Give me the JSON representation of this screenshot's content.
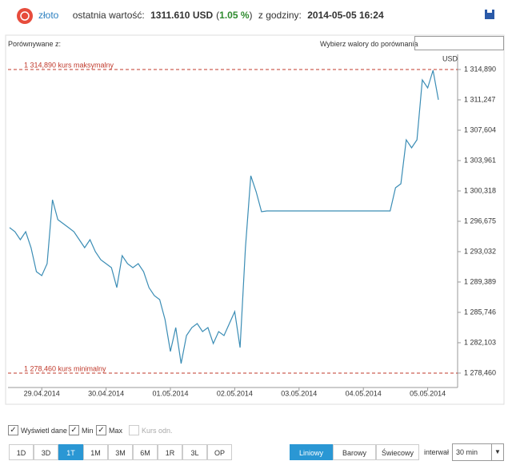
{
  "header": {
    "instrument": "złoto",
    "parts": [
      "ostatnia wartość:",
      "1311.610 USD",
      "(",
      "1.05 %",
      ")",
      "z godziny:",
      "2014-05-05 16:24"
    ]
  },
  "compare": {
    "label": "Porównywane z:",
    "picker": "Wybierz walory do porównania"
  },
  "options": [
    "Wyświetl dane",
    "Min",
    "Max",
    "Kurs odn."
  ],
  "ranges": [
    "1D",
    "3D",
    "1T",
    "1M",
    "3M",
    "6M",
    "1R",
    "3L",
    "OP"
  ],
  "styles": [
    "Liniowy",
    "Barowy",
    "Świecowy"
  ],
  "interval": {
    "label": "interwał",
    "value": "30 min"
  },
  "chart_data": {
    "type": "line",
    "y_unit": "USD",
    "color": "#3b8db5",
    "categories": [
      null,
      null,
      null,
      null,
      null,
      null,
      "29.04.2014",
      null,
      null,
      null,
      null,
      null,
      null,
      null,
      null,
      null,
      null,
      null,
      "30.04.2014",
      null,
      null,
      null,
      null,
      null,
      null,
      null,
      null,
      null,
      null,
      null,
      "01.05.2014",
      null,
      null,
      null,
      null,
      null,
      null,
      null,
      null,
      null,
      null,
      null,
      "02.05.2014",
      null,
      null,
      null,
      null,
      null,
      null,
      null,
      null,
      null,
      null,
      null,
      "03.05.2014",
      null,
      null,
      null,
      null,
      null,
      null,
      null,
      null,
      null,
      null,
      null,
      "04.05.2014",
      null,
      null,
      null,
      null,
      null,
      null,
      null,
      null,
      null,
      null,
      null,
      "05.05.2014",
      null,
      null
    ],
    "values": [
      1295.91,
      1295.43,
      1294.47,
      1295.43,
      1293.51,
      1290.63,
      1290.15,
      1291.59,
      1299.26,
      1296.87,
      1296.39,
      1295.91,
      1295.43,
      1294.47,
      1293.51,
      1294.47,
      1293.03,
      1292.07,
      1291.59,
      1291.11,
      1288.72,
      1292.55,
      1291.59,
      1291.11,
      1291.59,
      1290.63,
      1288.72,
      1287.76,
      1287.28,
      1284.88,
      1281.05,
      1283.92,
      1279.61,
      1282.96,
      1283.92,
      1284.4,
      1283.44,
      1283.92,
      1282.0,
      1283.44,
      1282.96,
      1284.4,
      1285.84,
      1281.52,
      1293.51,
      1302.14,
      1300.22,
      1297.82,
      1297.92,
      1297.92,
      1297.92,
      1297.92,
      1297.92,
      1297.92,
      1297.92,
      1297.92,
      1297.92,
      1297.92,
      1297.92,
      1297.92,
      1297.92,
      1297.92,
      1297.92,
      1297.92,
      1297.92,
      1297.92,
      1297.92,
      1297.92,
      1297.92,
      1297.92,
      1297.92,
      1297.92,
      1300.7,
      1301.18,
      1306.45,
      1305.49,
      1306.45,
      1313.64,
      1312.68,
      1314.79,
      1311.25
    ],
    "ylim": [
      1276.73,
      1316.71
    ],
    "yticks": [
      {
        "value": 1278.46,
        "label": "1 278,460"
      },
      {
        "value": 1282.103,
        "label": "1 282,103"
      },
      {
        "value": 1285.746,
        "label": "1 285,746"
      },
      {
        "value": 1289.389,
        "label": "1 289,389"
      },
      {
        "value": 1293.032,
        "label": "1 293,032"
      },
      {
        "value": 1296.675,
        "label": "1 296,675"
      },
      {
        "value": 1300.318,
        "label": "1 300,318"
      },
      {
        "value": 1303.961,
        "label": "1 303,961"
      },
      {
        "value": 1307.604,
        "label": "1 307,604"
      },
      {
        "value": 1311.247,
        "label": "1 311,247"
      },
      {
        "value": 1314.89,
        "label": "1 314,890"
      }
    ],
    "reference_lines": [
      {
        "value": 1314.89,
        "label": "1 314,890 kurs maksymalny",
        "color": "#c0392b"
      },
      {
        "value": 1278.46,
        "label": "1 278,460 kurs minimalny",
        "color": "#c0392b"
      }
    ]
  }
}
